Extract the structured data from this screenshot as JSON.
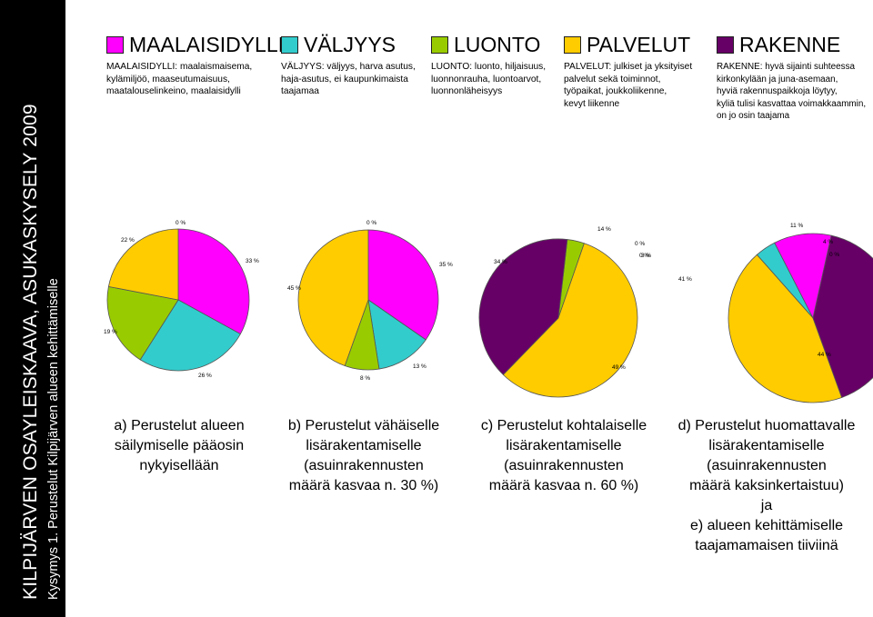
{
  "sidebar": {
    "title": "KILPIJÄRVEN OSAYLEISKAAVA, ASUKASKYSELY 2009",
    "subtitle": "Kysymys 1. Perustelut Kilpijärven alueen kehittämiselle"
  },
  "legend": [
    {
      "label": "MAALAISIDYLLI",
      "color": "#ff00ff",
      "desc": "MAALAISIDYLLI: maalaismaisema,\nkylämiljöö, maaseutumaisuus,\nmaatalouselinkeino, maalaisidylli"
    },
    {
      "label": "VÄLJYYS",
      "color": "#33cccc",
      "desc": "VÄLJYYS: väljyys, harva asutus,\nhaja-asutus, ei kaupunkimaista\ntaajamaa"
    },
    {
      "label": "LUONTO",
      "color": "#99cc00",
      "desc": "LUONTO: luonto, hiljaisuus,\nluonnonrauha, luontoarvot,\nluonnonläheisyys"
    },
    {
      "label": "PALVELUT",
      "color": "#ffcc00",
      "desc": "PALVELUT: julkiset ja yksityiset\npalvelut sekä toiminnot,\ntyöpaikat, joukkoliikenne,\nkevyt liikenne"
    },
    {
      "label": "RAKENNE",
      "color": "#660066",
      "desc": "RAKENNE: hyvä sijainti suhteessa\nkirkonkylään ja juna-asemaan,\nhyviä rakennuspaikkoja löytyy,\nkyliä tulisi kasvattaa voimakkaammin,\non jo osin taajama"
    }
  ],
  "chart_data": [
    {
      "type": "pie",
      "categories": [
        "MAALAISIDYLLI",
        "VÄLJYYS",
        "LUONTO",
        "PALVELUT",
        "RAKENNE"
      ],
      "values": [
        33,
        26,
        19,
        22,
        0
      ],
      "labels": [
        "33 %",
        "26 %",
        "19 %",
        "22 %",
        "0 %"
      ],
      "caption": "a) Perustelut alueen\nsäilymiselle pääosin\nnykyisellään"
    },
    {
      "type": "pie",
      "categories": [
        "MAALAISIDYLLI",
        "VÄLJYYS",
        "LUONTO",
        "PALVELUT",
        "RAKENNE"
      ],
      "values": [
        35,
        13,
        8,
        45,
        0
      ],
      "labels": [
        "35 %",
        "13 %",
        "8 %",
        "45 %",
        "0 %"
      ],
      "caption": "b) Perustelut vähäiselle\nlisärakentamiselle\n(asuinrakennusten\nmäärä kasvaa n. 30 %)"
    },
    {
      "type": "pie",
      "categories": [
        "MAALAISIDYLLI",
        "VÄLJYYS",
        "LUONTO",
        "PALVELUT",
        "RAKENNE"
      ],
      "values": [
        0,
        0,
        3,
        49,
        34
      ],
      "labels": [
        "0 %",
        "0 %",
        "3 %",
        "49 %",
        "34 %"
      ],
      "caption": "c) Perustelut kohtalaiselle\nlisärakentamiselle\n(asuinrakennusten\nmäärä kasvaa n. 60 %)"
    },
    {
      "type": "pie",
      "categories": [
        "MAALAISIDYLLI",
        "VÄLJYYS",
        "LUONTO",
        "PALVELUT",
        "RAKENNE"
      ],
      "values": [
        11,
        4,
        0,
        44,
        41
      ],
      "labels": [
        "11 %",
        "4 %",
        "0 %",
        "44 %",
        "41 %"
      ],
      "caption": "d) Perustelut huomattavalle\nlisärakentamiselle\n(asuinrakennusten\nmäärä kaksinkertaistuu)\nja\ne) alueen kehittämiselle\ntaajamamaisen tiiviinä"
    }
  ],
  "extra_labels": [
    {
      "text": "14 %"
    }
  ]
}
